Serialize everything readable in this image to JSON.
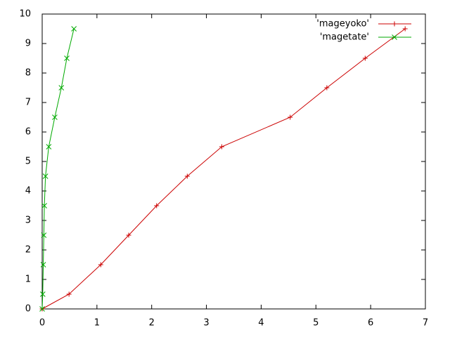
{
  "chart_data": {
    "type": "line",
    "series": [
      {
        "name": "'mageyoko'",
        "color": "#cc0000",
        "marker": "plus",
        "x": [
          0,
          0.49,
          1.07,
          1.58,
          2.09,
          2.65,
          3.28,
          4.53,
          5.2,
          5.9,
          6.63
        ],
        "values": [
          0,
          0.5,
          1.5,
          2.5,
          3.5,
          4.5,
          5.5,
          6.5,
          7.5,
          8.5,
          9.5
        ]
      },
      {
        "name": "'magetate'",
        "color": "#00aa00",
        "marker": "cross",
        "x": [
          0,
          0.01,
          0.02,
          0.03,
          0.04,
          0.06,
          0.12,
          0.23,
          0.35,
          0.45,
          0.58
        ],
        "values": [
          0,
          0.5,
          1.5,
          2.5,
          3.5,
          4.5,
          5.5,
          6.5,
          7.5,
          8.5,
          9.5
        ]
      }
    ],
    "xlim": [
      0,
      7
    ],
    "xticks": [
      0,
      1,
      2,
      3,
      4,
      5,
      6,
      7
    ],
    "ylim": [
      0,
      10
    ],
    "yticks": [
      0,
      1,
      2,
      3,
      4,
      5,
      6,
      7,
      8,
      9,
      10
    ],
    "legend": "top-right"
  }
}
